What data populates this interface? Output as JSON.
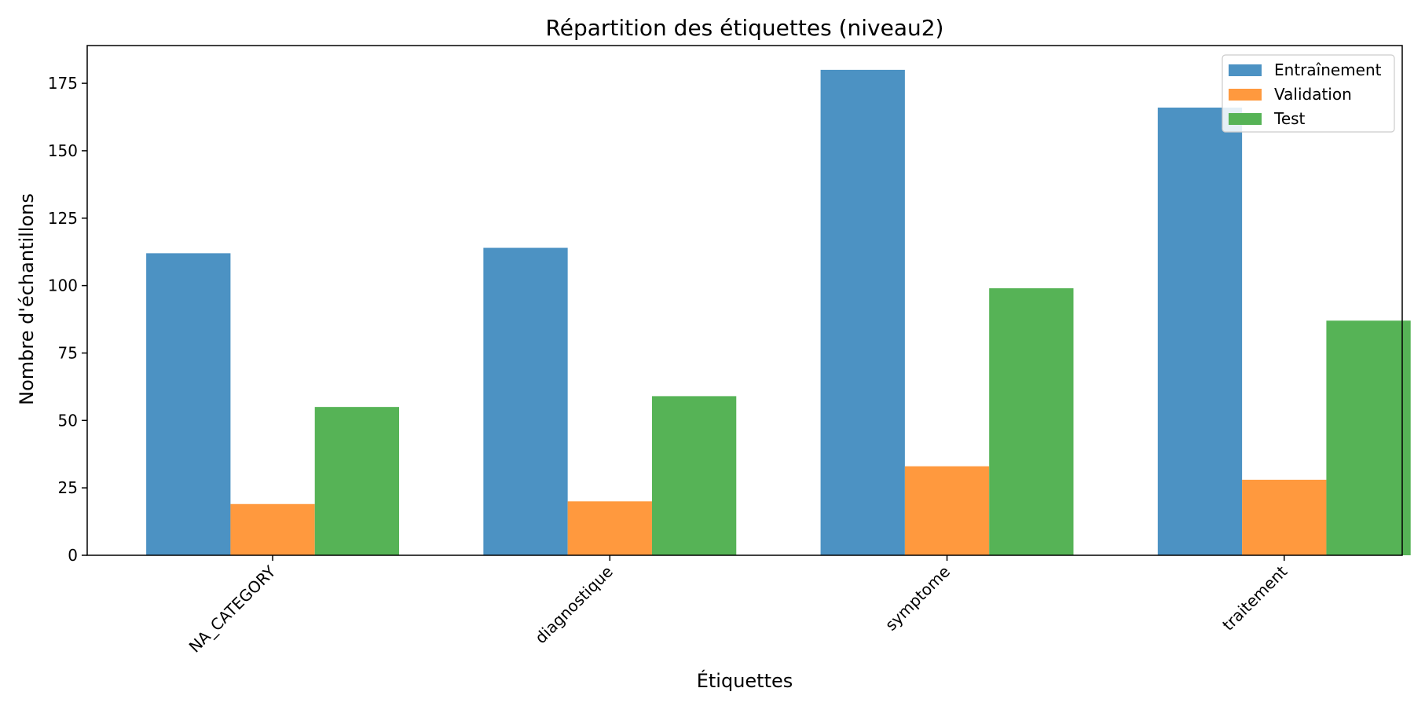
{
  "chart_data": {
    "type": "bar",
    "title": "Répartition des étiquettes (niveau2)",
    "xlabel": "Étiquettes",
    "ylabel": "Nombre d'échantillons",
    "categories": [
      "NA_CATEGORY",
      "diagnostique",
      "symptome",
      "traitement"
    ],
    "series": [
      {
        "name": "Entraînement",
        "color": "#4c92c3",
        "values": [
          112,
          114,
          180,
          166
        ]
      },
      {
        "name": "Validation",
        "color": "#ff993e",
        "values": [
          19,
          20,
          33,
          28
        ]
      },
      {
        "name": "Test",
        "color": "#56b356",
        "values": [
          55,
          59,
          99,
          87
        ]
      }
    ],
    "ylim": [
      0,
      189
    ],
    "yticks": [
      0,
      25,
      50,
      75,
      100,
      125,
      150,
      175
    ],
    "grid": false,
    "legend_position": "top-right"
  }
}
